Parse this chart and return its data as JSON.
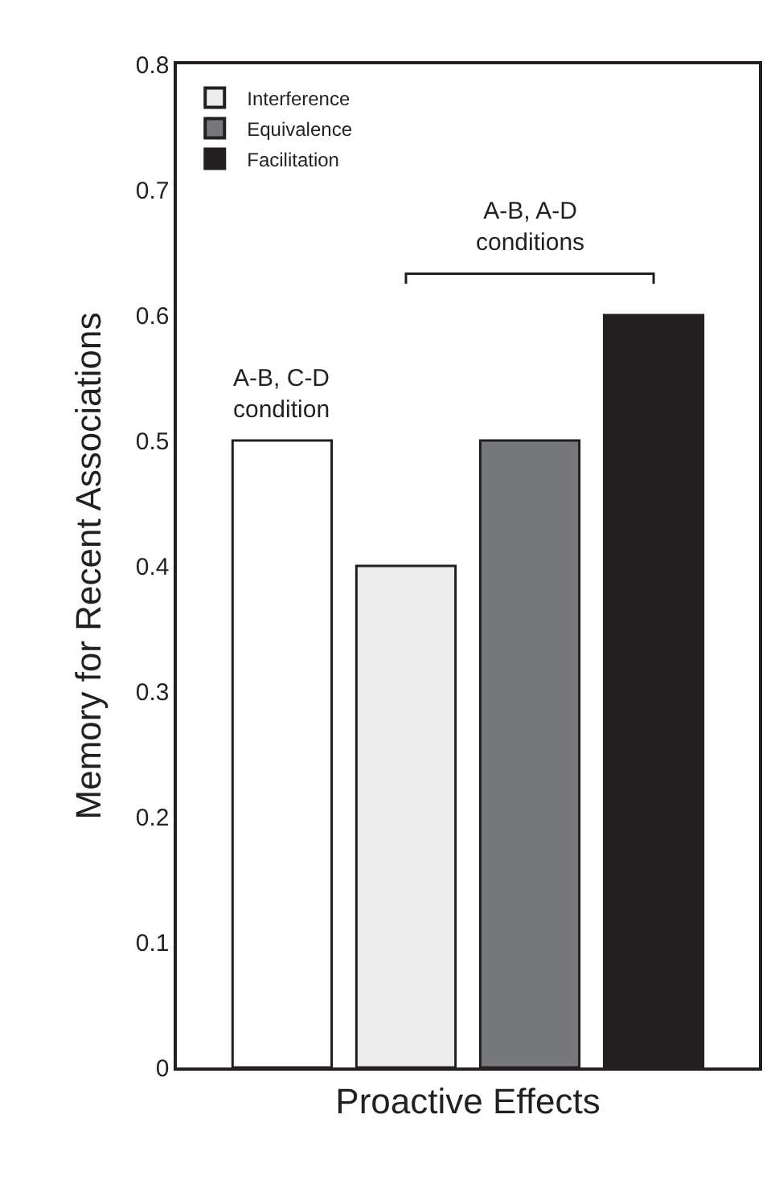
{
  "chart_data": {
    "type": "bar",
    "xlabel": "Proactive Effects",
    "ylabel": "Memory for Recent Associations",
    "categories": [
      null,
      null,
      null,
      null
    ],
    "series": [
      {
        "color": "#ffffff",
        "values": [
          0.5,
          null,
          null,
          null
        ]
      },
      {
        "name": "Interference",
        "color": "#ececec",
        "values": [
          null,
          0.4,
          null,
          null
        ]
      },
      {
        "name": "Equivalence",
        "color": "#77787b",
        "values": [
          null,
          null,
          0.5,
          null
        ]
      },
      {
        "name": "Facilitation",
        "color": "#231f20",
        "values": [
          null,
          null,
          null,
          0.6
        ]
      }
    ],
    "ylim": [
      0,
      0.8
    ],
    "yticks": [
      0,
      0.1,
      0.2,
      0.3,
      0.4,
      0.5,
      0.6,
      0.7,
      0.8
    ],
    "annotations": [
      "A-B, C-D\ncondition",
      "A-B, A-D\nconditions"
    ],
    "legend": "top left"
  }
}
